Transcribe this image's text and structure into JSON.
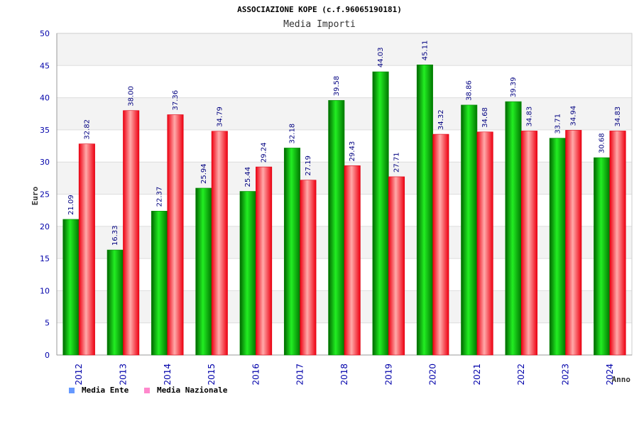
{
  "chart_data": {
    "type": "bar",
    "title": "ASSOCIAZIONE KOPE (c.f.96065190181)",
    "subtitle": "Media Importi",
    "xlabel": "Anno",
    "ylabel": "Euro",
    "ylim": [
      0,
      50
    ],
    "yticks": [
      "0",
      "5",
      "10",
      "15",
      "20",
      "25",
      "30",
      "35",
      "40",
      "45",
      "50"
    ],
    "grid": true,
    "legend_position": "bottom-left",
    "categories": [
      "2012",
      "2013",
      "2014",
      "2015",
      "2016",
      "2017",
      "2018",
      "2019",
      "2020",
      "2021",
      "2022",
      "2023",
      "2024"
    ],
    "series": [
      {
        "name": "Media Ente",
        "legend_color": "#6699ff",
        "bar_color": "#00cc00",
        "values": [
          21.09,
          16.33,
          22.37,
          25.94,
          25.44,
          32.18,
          39.58,
          44.03,
          45.11,
          38.86,
          39.39,
          33.71,
          30.68
        ],
        "labels": [
          "21.09",
          "16.33",
          "22.37",
          "25.94",
          "25.44",
          "32.18",
          "39.58",
          "44.03",
          "45.11",
          "38.86",
          "39.39",
          "33.71",
          "30.68"
        ]
      },
      {
        "name": "Media Nazionale",
        "legend_color": "#ff88cc",
        "bar_color": "#ff2233",
        "values": [
          32.82,
          38.0,
          37.36,
          34.79,
          29.24,
          27.19,
          29.43,
          27.71,
          34.32,
          34.68,
          34.83,
          34.94,
          34.83
        ],
        "labels": [
          "32.82",
          "38.00",
          "37.36",
          "34.79",
          "29.24",
          "27.19",
          "29.43",
          "27.71",
          "34.32",
          "34.68",
          "34.83",
          "34.94",
          "34.83"
        ]
      }
    ]
  }
}
